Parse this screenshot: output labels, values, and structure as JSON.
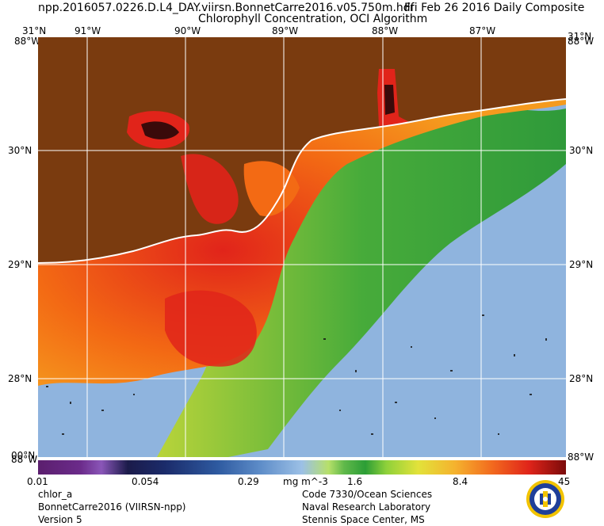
{
  "header": {
    "filename": "npp.2016057.0226.D.L4_DAY.viirsn.BonnetCarre2016.v05.750m.hdf",
    "date_label": "Fri Feb 26 2016 Daily Composite",
    "product_title": "Chlorophyll Concentration, OCI Algorithm"
  },
  "map": {
    "lat_labels": [
      "31°N",
      "30°N",
      "29°N",
      "28°N",
      "00°N"
    ],
    "lon_labels": [
      "91°W",
      "90°W",
      "89°W",
      "88°W",
      "87°W"
    ],
    "corner_labels": {
      "top_left_lat": "31°N",
      "top_right_lat": "31°N",
      "top_left_lon": "88°W",
      "top_right_lon": "88°W",
      "bottom_left_lat": "00°N",
      "bottom_left_lon": "88°W",
      "bottom_right_lon": "88°W"
    },
    "colors": {
      "land": "#7a3b0f",
      "low_water": "#8fb4de",
      "mid_water": "#3fa83a",
      "high_water": "#f36a14",
      "very_high_water": "#e1241a",
      "grid": "#ffffff"
    }
  },
  "colorbar": {
    "tick_labels": [
      "0.01",
      "0.054",
      "0.29",
      "1.6",
      "8.4",
      "45"
    ],
    "units": "mg m^-3"
  },
  "footer": {
    "left_lines": [
      "chlor_a",
      "BonnetCarre2016 (VIIRSN-npp)",
      "Version 5"
    ],
    "right_lines": [
      "Code 7330/Ocean Sciences",
      "Naval Research Laboratory",
      "Stennis Space Center, MS"
    ],
    "logo_icon": "nrl-seal-icon"
  }
}
